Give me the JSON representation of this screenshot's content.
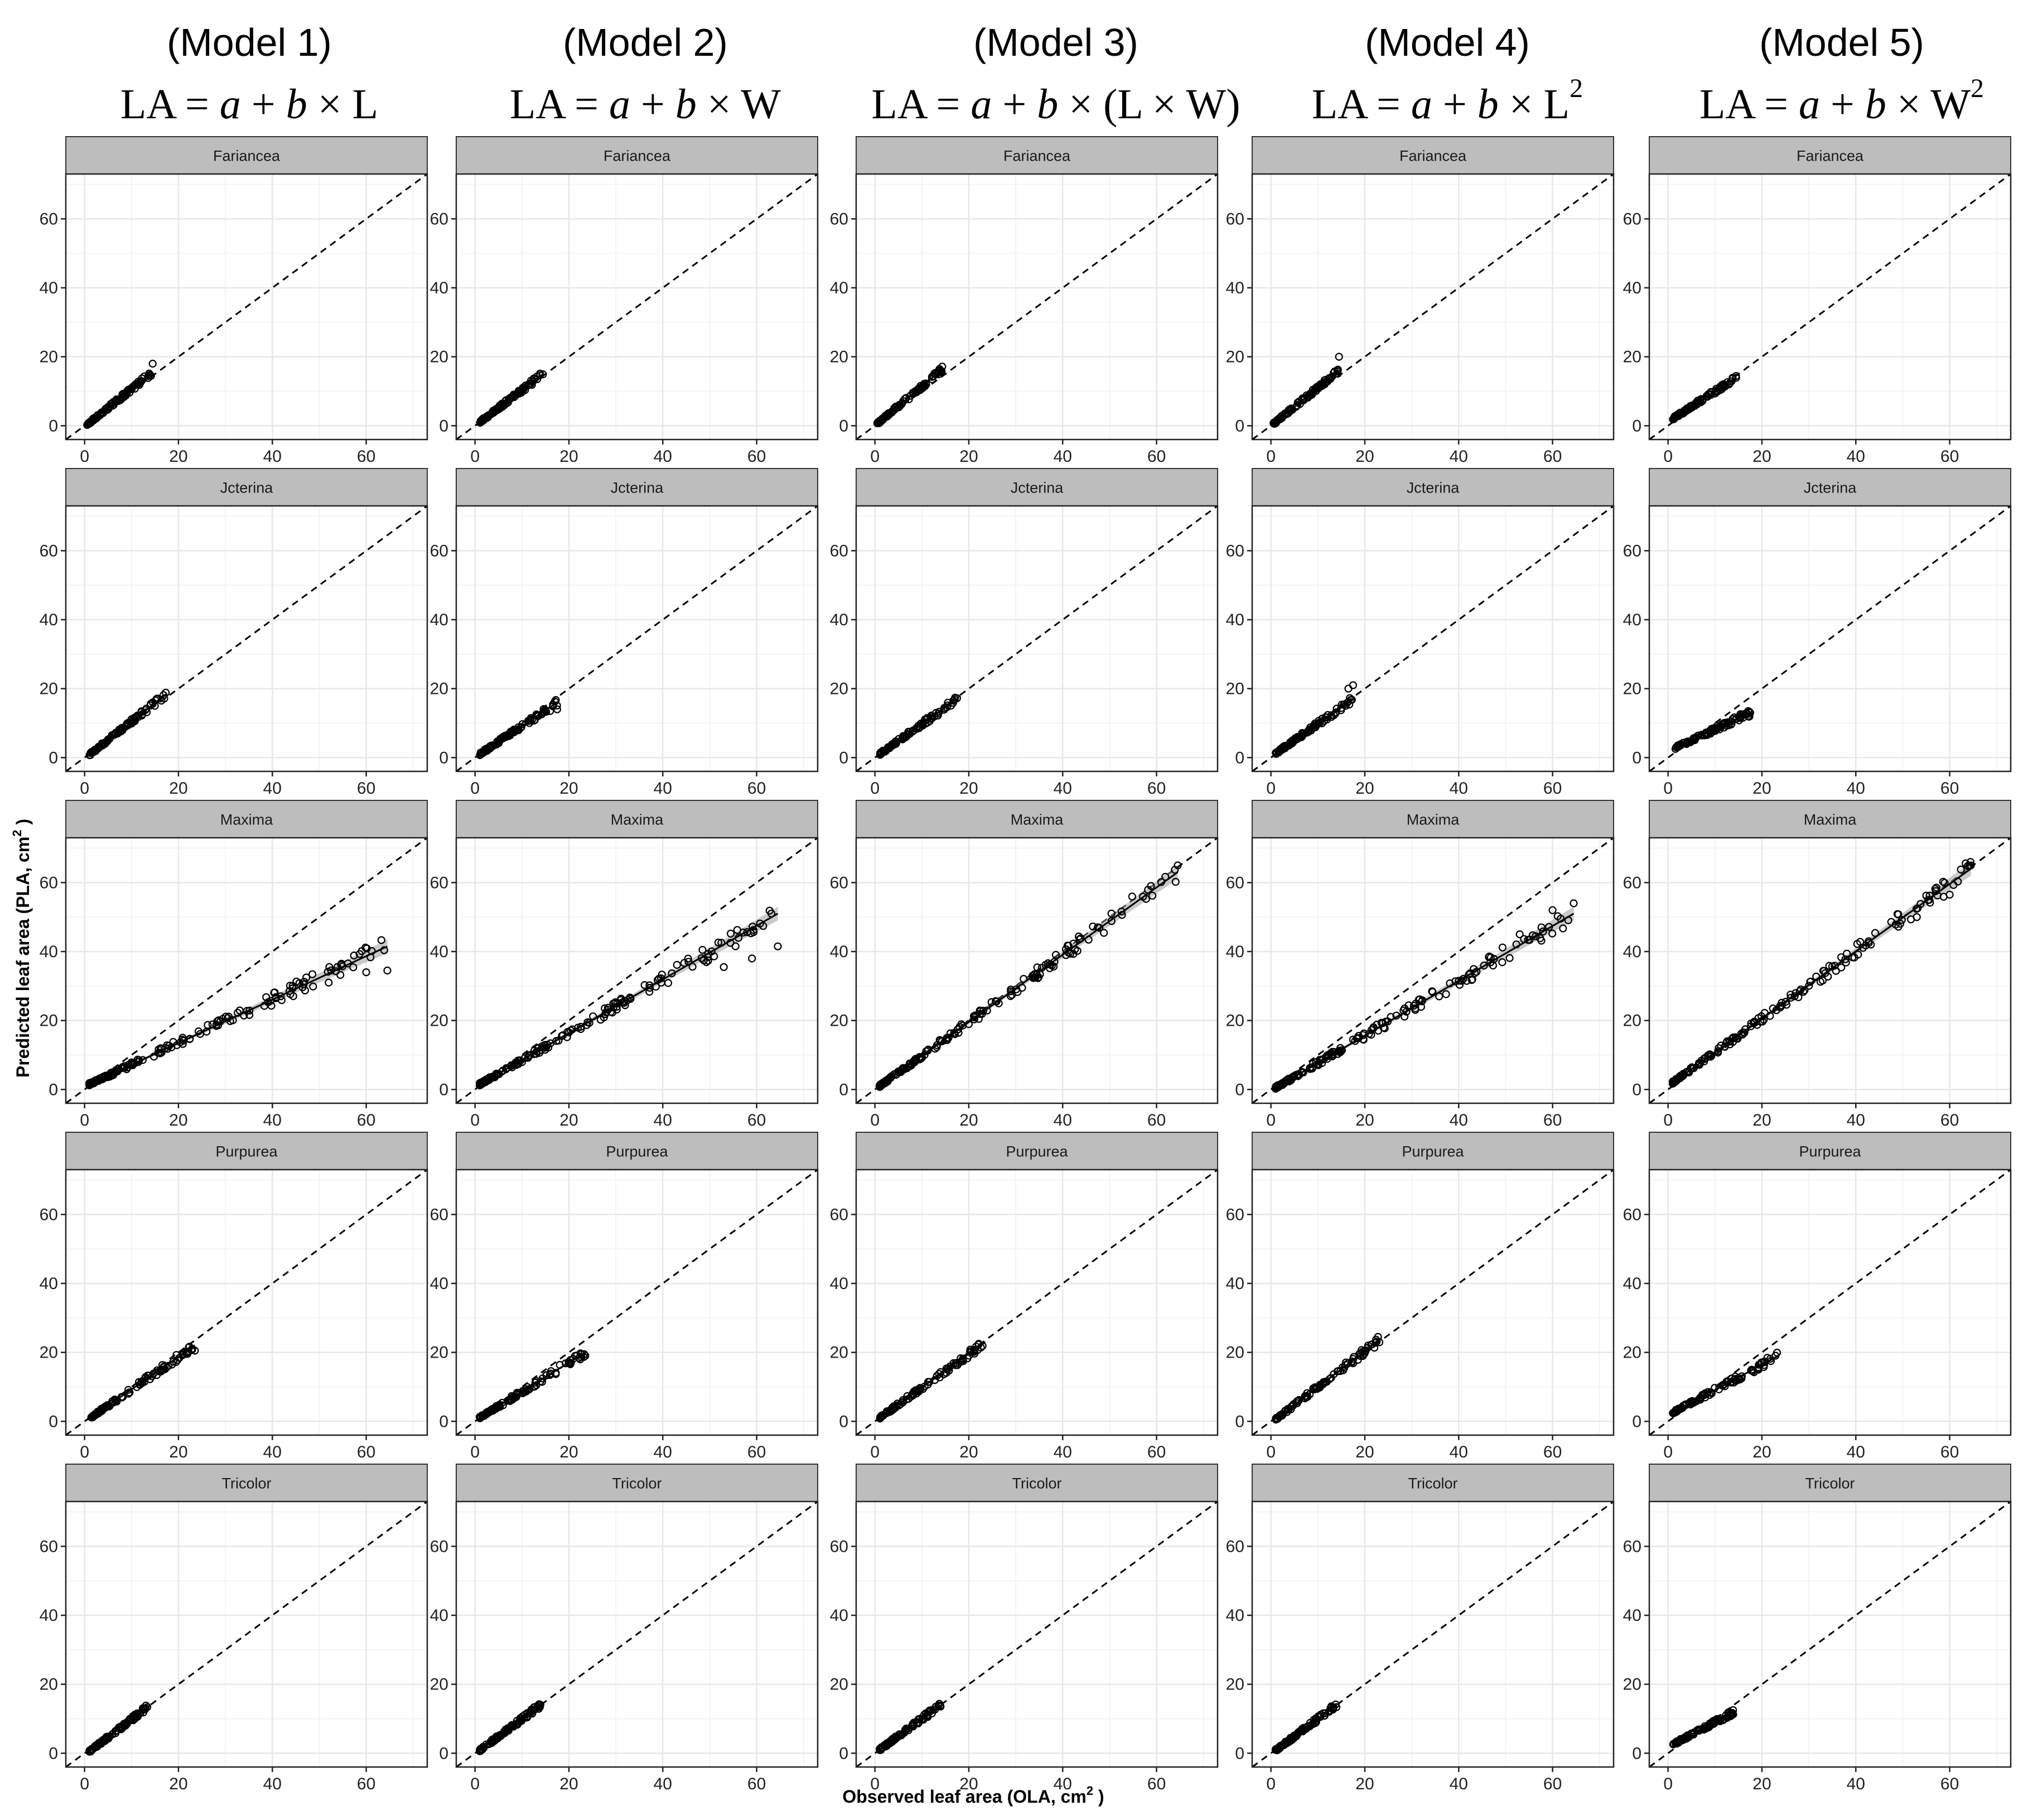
{
  "figure": {
    "models": [
      {
        "title": "(Model 1)",
        "formula": {
          "prefix": "LA = ",
          "a": "a",
          "mid": " + ",
          "b": "b",
          "rest": " × L",
          "sup": ""
        }
      },
      {
        "title": "(Model 2)",
        "formula": {
          "prefix": "LA = ",
          "a": "a",
          "mid": " + ",
          "b": "b",
          "rest": " × W",
          "sup": ""
        }
      },
      {
        "title": "(Model 3)",
        "formula": {
          "prefix": "LA = ",
          "a": "a",
          "mid": " + ",
          "b": "b",
          "rest": " × (L × W)",
          "sup": ""
        }
      },
      {
        "title": "(Model 4)",
        "formula": {
          "prefix": "LA = ",
          "a": "a",
          "mid": " + ",
          "b": "b",
          "rest": " × L",
          "sup": "2"
        }
      },
      {
        "title": "(Model 5)",
        "formula": {
          "prefix": "LA = ",
          "a": "a",
          "mid": " + ",
          "b": "b",
          "rest": " × W",
          "sup": "2"
        }
      }
    ],
    "ylabel": "Predicted leaf area (PLA,  cm",
    "ylabel_sup": "2",
    "ylabel_end": " )",
    "xlabel": "Observed leaf area (OLA,  cm",
    "xlabel_sup": "2",
    "xlabel_end": " )"
  },
  "chart_data": {
    "type": "scatter",
    "facets": [
      "Fariancea",
      "Jcterina",
      "Maxima",
      "Purpurea",
      "Tricolor"
    ],
    "xlim": [
      -4,
      73
    ],
    "ylim": [
      -4,
      73
    ],
    "x_ticks": [
      0,
      20,
      40,
      60
    ],
    "y_ticks": [
      0,
      20,
      40,
      60
    ],
    "grid": true,
    "reference_line": {
      "type": "1:1 dashed",
      "slope": 1,
      "intercept": 0
    },
    "panels": [
      {
        "model": 1,
        "facet": "Fariancea",
        "x_range": [
          0.5,
          14.5
        ],
        "fit": [
          [
            0.5,
            0.3
          ],
          [
            14.5,
            15.5
          ]
        ],
        "outliers": [
          [
            14.5,
            18
          ]
        ]
      },
      {
        "model": 2,
        "facet": "Fariancea",
        "x_range": [
          1,
          14.5
        ],
        "fit": [
          [
            1,
            1
          ],
          [
            14.5,
            15
          ]
        ],
        "outliers": []
      },
      {
        "model": 3,
        "facet": "Fariancea",
        "x_range": [
          0.5,
          14.5
        ],
        "fit": [
          [
            0.5,
            0.6
          ],
          [
            14.5,
            16.5
          ]
        ],
        "outliers": []
      },
      {
        "model": 4,
        "facet": "Fariancea",
        "x_range": [
          0.5,
          14.5
        ],
        "fit": [
          [
            0.5,
            0.5
          ],
          [
            14.5,
            16
          ]
        ],
        "outliers": [
          [
            14.5,
            20
          ]
        ]
      },
      {
        "model": 5,
        "facet": "Fariancea",
        "x_range": [
          1,
          14.5
        ],
        "fit": [
          [
            1,
            2
          ],
          [
            14.5,
            14
          ]
        ],
        "outliers": []
      },
      {
        "model": 1,
        "facet": "Jcterina",
        "x_range": [
          1,
          17.5
        ],
        "fit": [
          [
            1,
            0.8
          ],
          [
            17.5,
            18.5
          ]
        ],
        "outliers": []
      },
      {
        "model": 2,
        "facet": "Jcterina",
        "x_range": [
          1,
          17.5
        ],
        "fit": [
          [
            1,
            1
          ],
          [
            17.5,
            16
          ]
        ],
        "outliers": [
          [
            16,
            13.5
          ],
          [
            17.5,
            14
          ]
        ]
      },
      {
        "model": 3,
        "facet": "Jcterina",
        "x_range": [
          1,
          17.5
        ],
        "fit": [
          [
            1,
            1
          ],
          [
            17.5,
            17
          ]
        ],
        "outliers": []
      },
      {
        "model": 4,
        "facet": "Jcterina",
        "x_range": [
          1,
          17.5
        ],
        "fit": [
          [
            1,
            1.2
          ],
          [
            17.5,
            17
          ]
        ],
        "outliers": [
          [
            16.5,
            20
          ],
          [
            17.5,
            21
          ]
        ]
      },
      {
        "model": 5,
        "facet": "Jcterina",
        "x_range": [
          1,
          17.5
        ],
        "fit": [
          [
            1,
            2.5
          ],
          [
            17.5,
            13
          ]
        ],
        "outliers": [
          [
            16,
            12.5
          ],
          [
            17.5,
            13
          ]
        ]
      },
      {
        "model": 1,
        "facet": "Maxima",
        "x_range": [
          1,
          64.5
        ],
        "fit": [
          [
            1,
            1.5
          ],
          [
            64.5,
            41.5
          ]
        ],
        "outliers": [
          [
            52,
            31
          ],
          [
            60,
            34
          ],
          [
            64.5,
            34.5
          ]
        ]
      },
      {
        "model": 2,
        "facet": "Maxima",
        "x_range": [
          1,
          64.5
        ],
        "fit": [
          [
            1,
            1.5
          ],
          [
            64.5,
            51
          ]
        ],
        "outliers": [
          [
            53,
            35.5
          ],
          [
            59,
            38
          ],
          [
            64.5,
            41.5
          ]
        ]
      },
      {
        "model": 3,
        "facet": "Maxima",
        "x_range": [
          1,
          64.5
        ],
        "fit": [
          [
            1,
            1
          ],
          [
            64.5,
            63
          ]
        ],
        "outliers": [
          [
            64.5,
            65
          ]
        ]
      },
      {
        "model": 4,
        "facet": "Maxima",
        "x_range": [
          1,
          64.5
        ],
        "fit": [
          [
            1,
            0.5
          ],
          [
            64.5,
            51
          ]
        ],
        "outliers": [
          [
            53,
            45
          ],
          [
            60,
            52
          ],
          [
            64.5,
            54
          ]
        ]
      },
      {
        "model": 5,
        "facet": "Maxima",
        "x_range": [
          1,
          64.5
        ],
        "fit": [
          [
            1,
            2
          ],
          [
            64.5,
            64
          ]
        ],
        "outliers": [
          [
            53,
            50
          ],
          [
            60,
            56.5
          ],
          [
            64.5,
            65
          ]
        ]
      },
      {
        "model": 1,
        "facet": "Purpurea",
        "x_range": [
          1,
          23.5
        ],
        "fit": [
          [
            1,
            0.8
          ],
          [
            23.5,
            22
          ]
        ],
        "outliers": [
          [
            23.5,
            20.5
          ]
        ]
      },
      {
        "model": 2,
        "facet": "Purpurea",
        "x_range": [
          1,
          23.5
        ],
        "fit": [
          [
            1,
            1
          ],
          [
            23.5,
            20
          ]
        ],
        "outliers": [
          [
            23.5,
            19
          ]
        ]
      },
      {
        "model": 3,
        "facet": "Purpurea",
        "x_range": [
          1,
          23.5
        ],
        "fit": [
          [
            1,
            1
          ],
          [
            23.5,
            23
          ]
        ],
        "outliers": []
      },
      {
        "model": 4,
        "facet": "Purpurea",
        "x_range": [
          1,
          23.5
        ],
        "fit": [
          [
            1,
            0.6
          ],
          [
            23.5,
            24
          ]
        ],
        "outliers": []
      },
      {
        "model": 5,
        "facet": "Purpurea",
        "x_range": [
          1,
          23.5
        ],
        "fit": [
          [
            1,
            2.5
          ],
          [
            23.5,
            19
          ]
        ],
        "outliers": []
      },
      {
        "model": 1,
        "facet": "Tricolor",
        "x_range": [
          1,
          14
        ],
        "fit": [
          [
            1,
            0.5
          ],
          [
            14,
            14
          ]
        ],
        "outliers": []
      },
      {
        "model": 2,
        "facet": "Tricolor",
        "x_range": [
          1,
          14
        ],
        "fit": [
          [
            1,
            0.8
          ],
          [
            14,
            14
          ]
        ],
        "outliers": []
      },
      {
        "model": 3,
        "facet": "Tricolor",
        "x_range": [
          1,
          14
        ],
        "fit": [
          [
            1,
            1
          ],
          [
            14,
            14
          ]
        ],
        "outliers": []
      },
      {
        "model": 4,
        "facet": "Tricolor",
        "x_range": [
          1,
          14
        ],
        "fit": [
          [
            1,
            0.8
          ],
          [
            14,
            14
          ]
        ],
        "outliers": []
      },
      {
        "model": 5,
        "facet": "Tricolor",
        "x_range": [
          1,
          14
        ],
        "fit": [
          [
            1,
            2.5
          ],
          [
            14,
            12
          ]
        ],
        "outliers": []
      }
    ]
  },
  "colors": {
    "strip_fill": "#bdbdbd",
    "grid_major": "#e8e8e8",
    "grid_minor": "#f4f4f4",
    "ink": "#000000",
    "confidence_band": "#9e9e9e"
  }
}
